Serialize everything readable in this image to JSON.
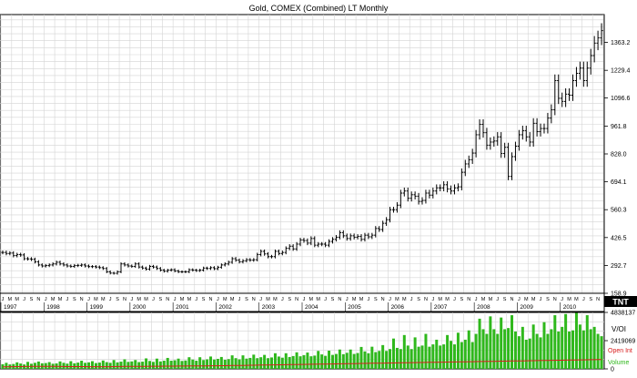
{
  "chart_data": [
    {
      "type": "bar",
      "title": "Gold, COMEX (Combined) LT Monthly",
      "subtitle": "",
      "xlabel": "",
      "ylabel": "",
      "ylim": [
        158.9,
        1497.0
      ],
      "grid": true,
      "log_scale": false,
      "bar_style": "OHLC",
      "y_ticks": [
        "1363.2",
        "1229.4",
        "1096.6",
        "961.8",
        "828.0",
        "694.1",
        "560.3",
        "426.5",
        "292.7",
        "158.9"
      ],
      "x_tick_labels": [
        "1997",
        "1998",
        "1999",
        "2000",
        "2001",
        "2002",
        "2003",
        "2004",
        "2005",
        "2006",
        "2007",
        "2008",
        "2009",
        "2010"
      ],
      "month_letters": [
        "J",
        "F",
        "M",
        "A",
        "M",
        "J",
        "J",
        "A",
        "S",
        "O",
        "N",
        "D"
      ],
      "series": [
        {
          "name": "",
          "monthly_close": [
            355,
            350,
            352,
            340,
            345,
            343,
            325,
            324,
            322,
            310,
            295,
            290,
            292,
            295,
            300,
            308,
            300,
            295,
            290,
            288,
            292,
            293,
            295,
            290,
            287,
            287,
            285,
            282,
            278,
            262,
            256,
            255,
            262,
            300,
            295,
            290,
            288,
            300,
            285,
            280,
            275,
            288,
            285,
            278,
            270,
            265,
            270,
            272,
            266,
            262,
            262,
            262,
            272,
            270,
            268,
            270,
            280,
            278,
            282,
            277,
            284,
            295,
            300,
            308,
            325,
            318,
            310,
            315,
            320,
            318,
            320,
            345,
            360,
            348,
            335,
            335,
            360,
            350,
            355,
            375,
            385,
            372,
            395,
            415,
            412,
            400,
            422,
            390,
            395,
            395,
            390,
            408,
            418,
            428,
            450,
            435,
            422,
            435,
            428,
            432,
            418,
            438,
            430,
            438,
            470,
            465,
            495,
            512,
            560,
            560,
            582,
            640,
            650,
            615,
            632,
            625,
            600,
            605,
            640,
            630,
            650,
            665,
            665,
            680,
            660,
            650,
            665,
            670,
            740,
            780,
            800,
            832,
            920,
            970,
            930,
            870,
            885,
            890,
            910,
            830,
            860,
            720,
            815,
            865,
            920,
            940,
            910,
            885,
            975,
            935,
            950,
            950,
            1000,
            1040,
            1180,
            1095,
            1080,
            1115,
            1110,
            1180,
            1215,
            1240,
            1180,
            1240,
            1300,
            1360,
            1385,
            1420
          ]
        }
      ],
      "price_box": "TNT"
    },
    {
      "type": "bar",
      "title": "",
      "xlabel": "",
      "ylabel": "",
      "ylim": [
        0,
        4838137
      ],
      "grid": true,
      "y_ticks": [
        "4838137",
        "2419069",
        "0"
      ],
      "legend": [
        "V/OI",
        "Open Int",
        "Volume"
      ],
      "legend_placement": "right",
      "series": [
        {
          "name": "Volume",
          "values": [
            400000,
            520000,
            380000,
            420000,
            560000,
            460000,
            380000,
            600000,
            440000,
            520000,
            630000,
            480000,
            500000,
            580000,
            440000,
            470000,
            640000,
            520000,
            450000,
            660000,
            480000,
            540000,
            700000,
            520000,
            560000,
            660000,
            500000,
            540000,
            720000,
            580000,
            520000,
            760000,
            560000,
            620000,
            820000,
            600000,
            640000,
            760000,
            580000,
            620000,
            900000,
            680000,
            600000,
            880000,
            640000,
            700000,
            940000,
            700000,
            740000,
            880000,
            680000,
            720000,
            1000000,
            800000,
            700000,
            1000000,
            760000,
            820000,
            1060000,
            800000,
            860000,
            1020000,
            780000,
            840000,
            1160000,
            920000,
            820000,
            1160000,
            880000,
            940000,
            1220000,
            920000,
            1000000,
            1200000,
            920000,
            980000,
            1340000,
            1060000,
            960000,
            1340000,
            1020000,
            1100000,
            1420000,
            1080000,
            1180000,
            1400000,
            1080000,
            1140000,
            1540000,
            1240000,
            1120000,
            1560000,
            1200000,
            1280000,
            1660000,
            1260000,
            1380000,
            1660000,
            1280000,
            1360000,
            1880000,
            1500000,
            1340000,
            1900000,
            1440000,
            1540000,
            2040000,
            1540000,
            1700000,
            2600000,
            1800000,
            1700000,
            2900000,
            2000000,
            1700000,
            2700000,
            1900000,
            2000000,
            3000000,
            1900000,
            2100000,
            2500000,
            2000000,
            2100000,
            2900000,
            2400000,
            2100000,
            3100000,
            2300000,
            2500000,
            3300000,
            2300000,
            3000000,
            4300000,
            3400000,
            3000000,
            4500000,
            3400000,
            3000000,
            4400000,
            3400000,
            3500000,
            4600000,
            3200000,
            2800000,
            3600000,
            2500000,
            2600000,
            3800000,
            3000000,
            2700000,
            4000000,
            3000000,
            3400000,
            4600000,
            3200000,
            3600000,
            4700000,
            3200000,
            3300000,
            4800000,
            3800000,
            3300000,
            4600000,
            3400000,
            3600000,
            3000000,
            2800000
          ]
        },
        {
          "name": "Open Int",
          "values": [
            180000,
            182000,
            185000,
            190000,
            195000,
            198000,
            200000,
            205000,
            210000,
            212000,
            215000,
            218000,
            215000,
            212000,
            210000,
            208000,
            205000,
            200000,
            198000,
            196000,
            195000,
            194000,
            193000,
            192000,
            190000,
            188000,
            186000,
            185000,
            184000,
            186000,
            190000,
            195000,
            200000,
            205000,
            210000,
            212000,
            214000,
            216000,
            218000,
            220000,
            222000,
            224000,
            226000,
            228000,
            230000,
            232000,
            234000,
            236000,
            238000,
            240000,
            242000,
            245000,
            248000,
            250000,
            252000,
            255000,
            258000,
            260000,
            262000,
            265000,
            268000,
            272000,
            276000,
            280000,
            285000,
            290000,
            295000,
            300000,
            305000,
            310000,
            315000,
            320000,
            325000,
            330000,
            335000,
            340000,
            345000,
            350000,
            355000,
            360000,
            365000,
            370000,
            375000,
            380000,
            385000,
            390000,
            395000,
            400000,
            405000,
            410000,
            415000,
            420000,
            425000,
            430000,
            435000,
            440000,
            445000,
            450000,
            455000,
            460000,
            465000,
            470000,
            475000,
            480000,
            485000,
            490000,
            495000,
            500000,
            505000,
            510000,
            515000,
            520000,
            525000,
            530000,
            535000,
            540000,
            545000,
            550000,
            555000,
            560000,
            565000,
            570000,
            575000,
            580000,
            585000,
            590000,
            595000,
            600000,
            605000,
            610000,
            615000,
            620000,
            625000,
            630000,
            635000,
            640000,
            645000,
            650000,
            655000,
            660000,
            665000,
            670000,
            675000,
            680000,
            685000,
            690000,
            695000,
            700000,
            705000,
            710000,
            715000,
            720000,
            725000,
            730000,
            735000,
            740000,
            745000,
            750000,
            755000,
            760000,
            765000,
            770000,
            775000,
            780000,
            785000,
            790000,
            795000,
            800000
          ]
        }
      ],
      "colors": {
        "volume": "#2fb81c",
        "open_interest": "#d81c1c"
      }
    }
  ]
}
